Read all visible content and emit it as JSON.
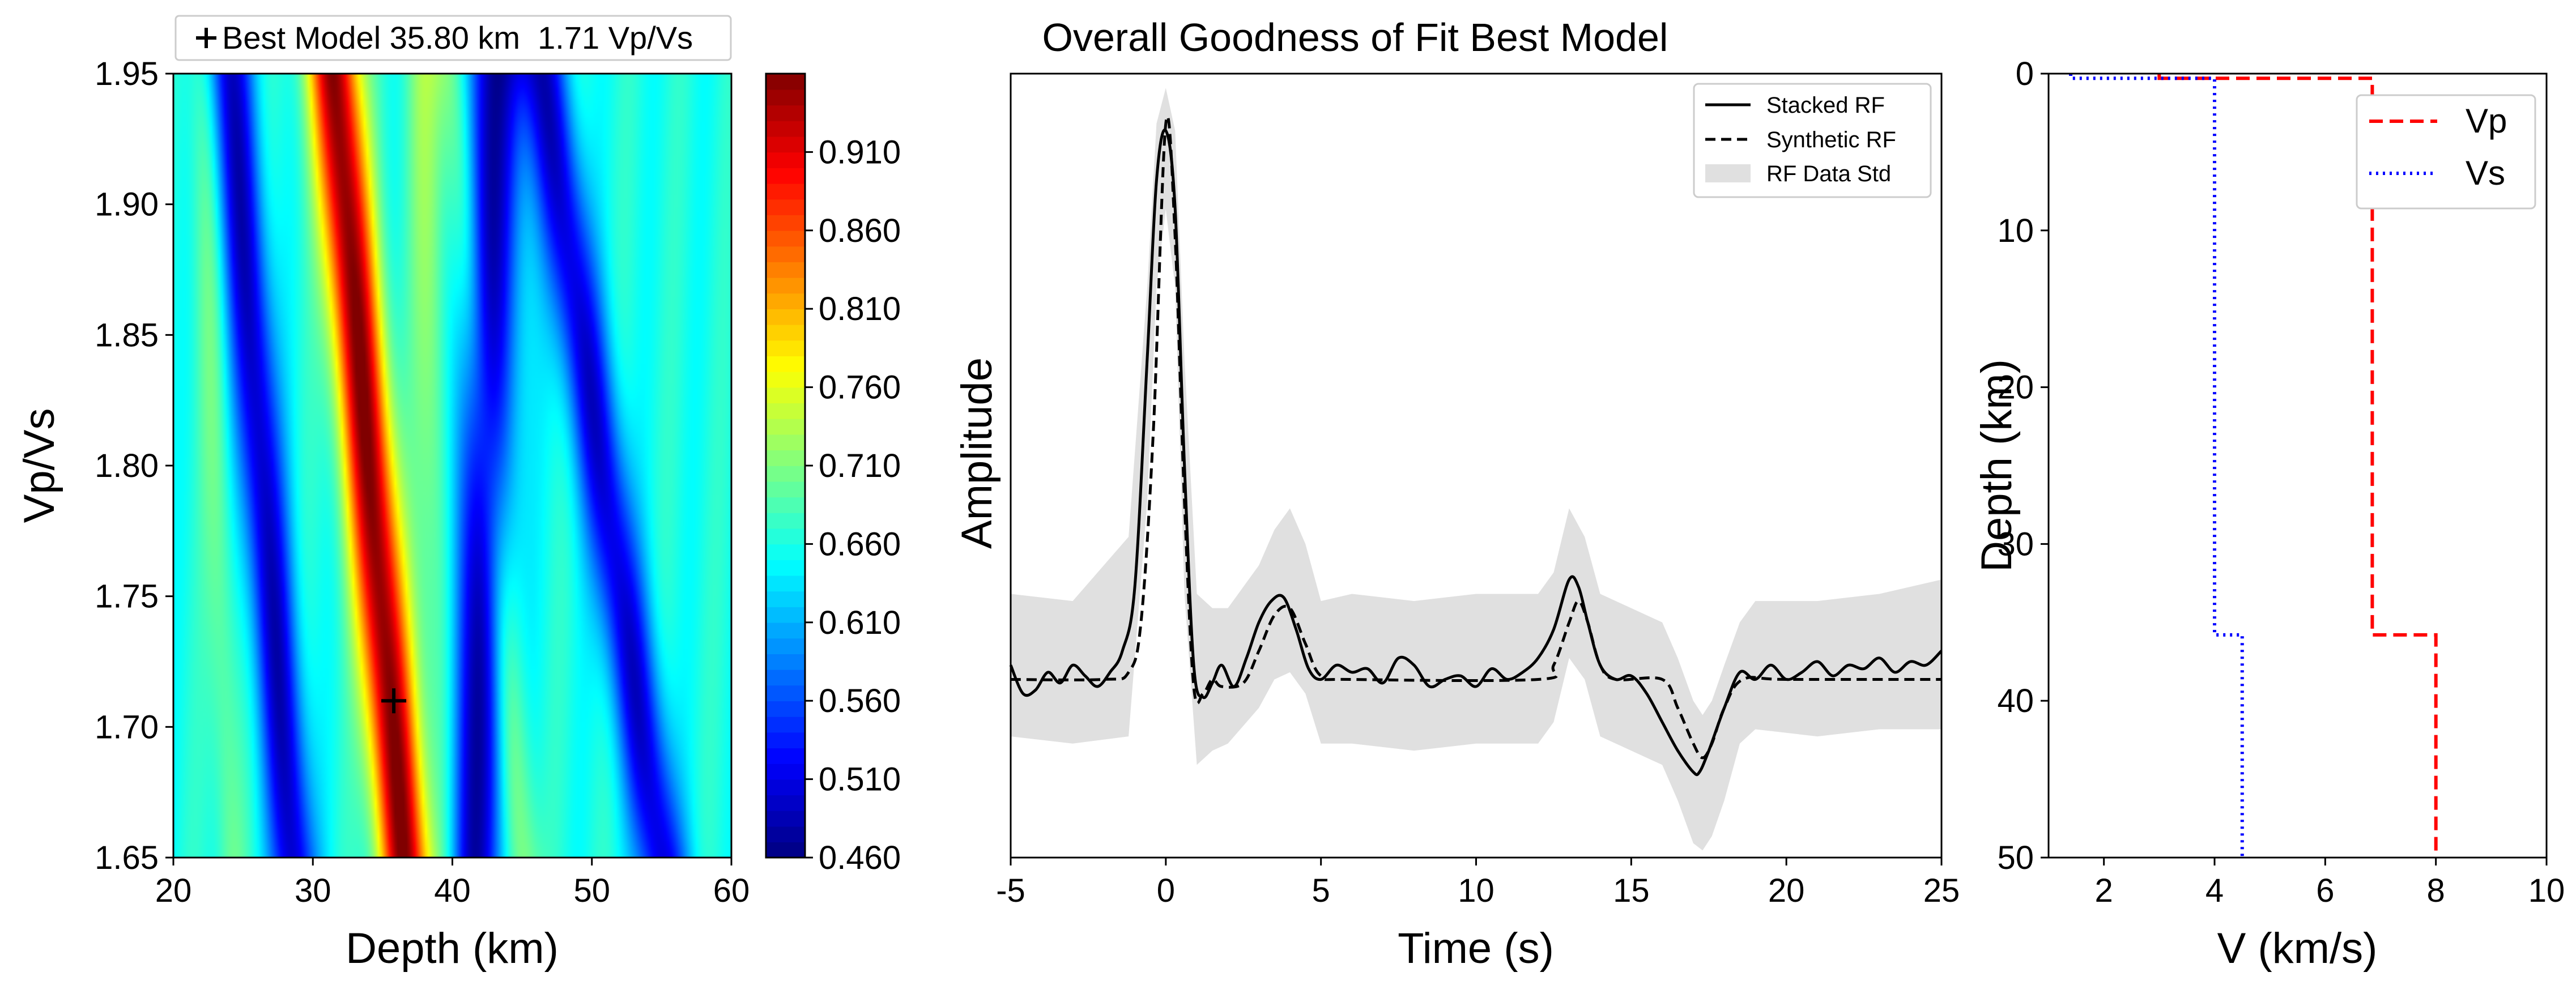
{
  "chart_data": [
    {
      "type": "heatmap",
      "xlabel": "Depth (km)",
      "ylabel": "Vp/Vs",
      "xlim": [
        20,
        60
      ],
      "ylim": [
        1.65,
        1.95
      ],
      "xticks": [
        20,
        30,
        40,
        50,
        60
      ],
      "xtick_labels": [
        "20",
        "30",
        "40",
        "50",
        "60"
      ],
      "yticks": [
        1.65,
        1.7,
        1.75,
        1.8,
        1.85,
        1.9,
        1.95
      ],
      "ytick_labels": [
        "1.65",
        "1.70",
        "1.75",
        "1.80",
        "1.85",
        "1.90",
        "1.95"
      ],
      "colormap": "jet",
      "colorbar": {
        "range": [
          0.46,
          0.96
        ],
        "ticks": [
          0.46,
          0.51,
          0.56,
          0.61,
          0.66,
          0.71,
          0.76,
          0.81,
          0.86,
          0.91
        ],
        "tick_labels": [
          "0.460",
          "0.510",
          "0.560",
          "0.610",
          "0.660",
          "0.710",
          "0.760",
          "0.810",
          "0.860",
          "0.910"
        ]
      },
      "best_model": {
        "depth": 35.8,
        "vpvs": 1.71,
        "legend": "Best Model 35.80 km  1.71 Vp/Vs"
      },
      "ridges": [
        {
          "top_depth": 31.5,
          "bottom_depth": 36.5,
          "value": 0.96,
          "width": 1.8
        },
        {
          "top_depth": 24.0,
          "bottom_depth": 28.5,
          "value": 0.49,
          "width": 1.6
        },
        {
          "top_depth": 43.0,
          "bottom_depth": 41.5,
          "value": 0.48,
          "width": 2.2
        },
        {
          "top_depth": 46.5,
          "bottom_depth": 55.0,
          "value": 0.5,
          "width": 1.8
        },
        {
          "top_depth": 38.0,
          "bottom_depth": 39.5,
          "value": 0.72,
          "width": 1.4
        },
        {
          "top_depth": 40.0,
          "bottom_depth": 45.0,
          "value": 0.73,
          "width": 1.3
        },
        {
          "top_depth": 22.0,
          "bottom_depth": 24.0,
          "value": 0.7,
          "width": 1.1
        }
      ]
    },
    {
      "type": "line",
      "title": "Overall Goodness of Fit Best Model",
      "xlabel": "Time (s)",
      "ylabel": "Amplitude",
      "xlim": [
        -5,
        25
      ],
      "ylim": [
        -0.25,
        0.85
      ],
      "xticks": [
        -5,
        0,
        5,
        10,
        15,
        20,
        25
      ],
      "xtick_labels": [
        "-5",
        "0",
        "5",
        "10",
        "15",
        "20",
        "25"
      ],
      "legend_position": "top-right",
      "series": [
        {
          "name": "Stacked RF",
          "style": "solid",
          "x": [
            -5,
            -4.6,
            -4.2,
            -3.8,
            -3.4,
            -3.0,
            -2.6,
            -2.2,
            -1.8,
            -1.4,
            -1.0,
            -0.6,
            -0.3,
            0,
            0.3,
            0.6,
            0.9,
            1.2,
            1.5,
            1.8,
            2.2,
            2.6,
            3.0,
            3.4,
            3.8,
            4.2,
            4.6,
            5.0,
            5.5,
            6.0,
            6.5,
            7.0,
            7.5,
            8.0,
            8.5,
            9.0,
            9.5,
            10.0,
            10.5,
            11.0,
            11.5,
            12.0,
            12.5,
            13.0,
            13.3,
            13.6,
            14.0,
            14.5,
            15.0,
            15.5,
            16.0,
            16.5,
            17.0,
            17.2,
            17.5,
            18.0,
            18.5,
            19.0,
            19.5,
            20.0,
            20.5,
            21.0,
            21.5,
            22.0,
            22.5,
            23.0,
            23.5,
            24.0,
            24.5,
            25.0
          ],
          "y": [
            0.02,
            -0.02,
            -0.015,
            0.01,
            -0.005,
            0.02,
            0.005,
            -0.01,
            0.01,
            0.04,
            0.13,
            0.45,
            0.7,
            0.77,
            0.66,
            0.3,
            0.02,
            -0.025,
            -0.005,
            0.02,
            -0.01,
            0.03,
            0.08,
            0.11,
            0.115,
            0.07,
            0.015,
            0.0,
            0.02,
            0.01,
            0.015,
            -0.005,
            0.03,
            0.02,
            -0.01,
            0.0,
            0.005,
            -0.01,
            0.015,
            0.0,
            0.01,
            0.03,
            0.07,
            0.14,
            0.13,
            0.08,
            0.02,
            0.0,
            0.005,
            -0.02,
            -0.06,
            -0.1,
            -0.13,
            -0.13,
            -0.1,
            -0.04,
            0.01,
            0.0,
            0.02,
            0.0,
            0.01,
            0.025,
            0.005,
            0.02,
            0.015,
            0.03,
            0.01,
            0.025,
            0.02,
            0.04
          ]
        },
        {
          "name": "Synthetic RF",
          "style": "dashed",
          "x": [
            -5,
            -2,
            -1.2,
            -0.8,
            -0.4,
            0,
            0.3,
            0.6,
            0.9,
            1.2,
            1.5,
            1.8,
            2.5,
            3.0,
            3.5,
            4.0,
            4.5,
            5.0,
            6.0,
            12.0,
            12.5,
            13.0,
            13.3,
            13.6,
            14.0,
            14.5,
            16.0,
            16.5,
            17.0,
            17.3,
            17.6,
            18.0,
            18.6,
            20.0,
            25.0
          ],
          "y": [
            0.0,
            0.0,
            0.01,
            0.08,
            0.35,
            0.78,
            0.62,
            0.25,
            -0.01,
            -0.02,
            0.0,
            -0.01,
            -0.005,
            0.04,
            0.09,
            0.1,
            0.05,
            0.005,
            0.0,
            0.0,
            0.02,
            0.08,
            0.11,
            0.08,
            0.02,
            0.0,
            0.0,
            -0.04,
            -0.09,
            -0.11,
            -0.09,
            -0.04,
            0.0,
            0.0,
            0.0
          ]
        },
        {
          "name": "RF Data Std",
          "style": "band",
          "x": [
            -5,
            -3,
            -1.2,
            -0.6,
            -0.3,
            0,
            0.3,
            0.6,
            1.0,
            1.5,
            2.0,
            3.0,
            3.5,
            4.0,
            4.5,
            5.0,
            6.0,
            8.0,
            10.0,
            12.0,
            12.5,
            13.0,
            13.5,
            14.0,
            15.0,
            16.0,
            16.5,
            17.0,
            17.3,
            17.6,
            18.0,
            18.5,
            19.0,
            21.0,
            23.0,
            25.0
          ],
          "upper": [
            0.12,
            0.11,
            0.2,
            0.55,
            0.78,
            0.83,
            0.77,
            0.45,
            0.12,
            0.1,
            0.1,
            0.16,
            0.21,
            0.24,
            0.19,
            0.11,
            0.12,
            0.11,
            0.12,
            0.12,
            0.15,
            0.24,
            0.2,
            0.12,
            0.1,
            0.08,
            0.03,
            -0.03,
            -0.05,
            -0.03,
            0.02,
            0.08,
            0.11,
            0.11,
            0.12,
            0.14
          ],
          "lower": [
            -0.08,
            -0.09,
            -0.08,
            0.25,
            0.55,
            0.66,
            0.55,
            0.12,
            -0.12,
            -0.1,
            -0.09,
            -0.04,
            0.0,
            0.01,
            -0.02,
            -0.09,
            -0.09,
            -0.1,
            -0.09,
            -0.09,
            -0.06,
            0.03,
            0.0,
            -0.08,
            -0.1,
            -0.12,
            -0.17,
            -0.23,
            -0.24,
            -0.22,
            -0.17,
            -0.09,
            -0.07,
            -0.08,
            -0.07,
            -0.07
          ]
        }
      ]
    },
    {
      "type": "line",
      "xlabel": "V (km/s)",
      "ylabel": "Depth (km)",
      "xlim": [
        1,
        10
      ],
      "ylim": [
        50,
        0
      ],
      "xticks": [
        2,
        4,
        6,
        8,
        10
      ],
      "xtick_labels": [
        "2",
        "4",
        "6",
        "8",
        "10"
      ],
      "yticks": [
        0,
        10,
        20,
        30,
        40,
        50
      ],
      "ytick_labels": [
        "0",
        "10",
        "20",
        "30",
        "40",
        "50"
      ],
      "legend_position": "top-right",
      "series": [
        {
          "name": "Vp",
          "style": "dashed",
          "color": "#ff0000",
          "x": [
            3.0,
            3.0,
            6.85,
            6.85,
            8.0,
            8.0
          ],
          "y": [
            0.0,
            0.3,
            0.3,
            35.8,
            35.8,
            50.0
          ]
        },
        {
          "name": "Vs",
          "style": "dotted",
          "color": "#0000ff",
          "x": [
            1.4,
            1.4,
            4.0,
            4.0,
            4.5,
            4.5
          ],
          "y": [
            0.0,
            0.3,
            0.3,
            35.8,
            35.8,
            50.0
          ]
        }
      ]
    }
  ]
}
